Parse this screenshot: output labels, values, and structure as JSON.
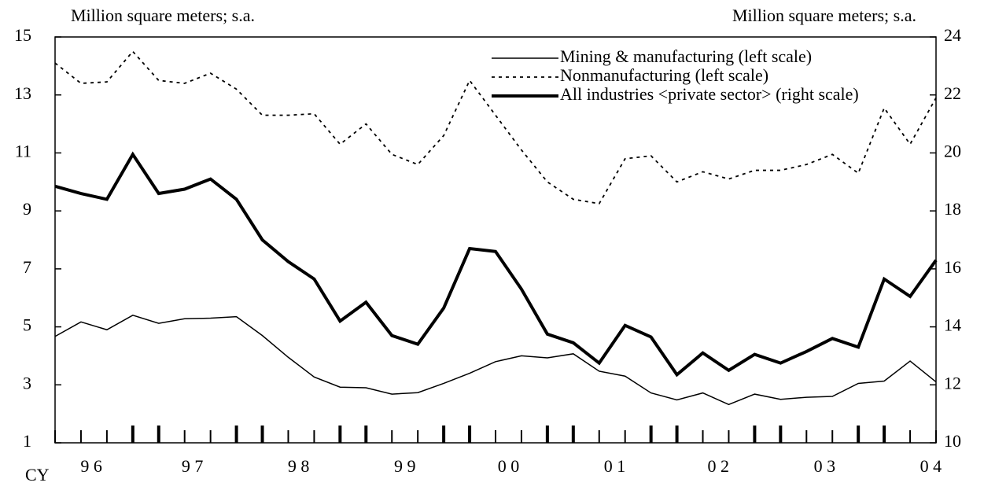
{
  "chart_data": {
    "type": "line",
    "y_label": "Million square meters; s.a.",
    "y2_label": "Million square meters; s.a.",
    "x_prefix": "CY",
    "categories": [
      null,
      null,
      null,
      null,
      null,
      null,
      null,
      null,
      null,
      null,
      null,
      null,
      null,
      null,
      null,
      null,
      null,
      null,
      null,
      null,
      null,
      null,
      null,
      null,
      null,
      null,
      null,
      null,
      null,
      null,
      null,
      null,
      null,
      null,
      null
    ],
    "xlim": [
      0,
      34
    ],
    "xticks": [
      {
        "value": 1.4,
        "label": "9 6"
      },
      {
        "value": 5.3,
        "label": "9 7"
      },
      {
        "value": 9.4,
        "label": "9 8"
      },
      {
        "value": 13.5,
        "label": "9 9"
      },
      {
        "value": 17.5,
        "label": "0 0"
      },
      {
        "value": 21.6,
        "label": "0 1"
      },
      {
        "value": 25.6,
        "label": "0 2"
      },
      {
        "value": 29.7,
        "label": "0 3"
      },
      {
        "value": 33.8,
        "label": "0 4"
      }
    ],
    "ylim": [
      1,
      15
    ],
    "yticks": [
      1,
      3,
      5,
      7,
      9,
      11,
      13,
      15
    ],
    "y2lim": [
      10,
      24
    ],
    "y2ticks": [
      10,
      12,
      14,
      16,
      18,
      20,
      22,
      24
    ],
    "series": [
      {
        "name": "Mining & manufacturing (left scale)",
        "color": "#000000",
        "style": "thin",
        "values": [
          4.67,
          5.17,
          4.9,
          5.4,
          5.12,
          5.28,
          5.3,
          5.35,
          4.7,
          3.95,
          3.27,
          2.92,
          2.9,
          2.68,
          2.73,
          3.05,
          3.4,
          3.8,
          4.0,
          3.93,
          4.07,
          3.47,
          3.3,
          2.72,
          2.48,
          2.72,
          2.32,
          2.68,
          2.5,
          2.57,
          2.6,
          3.05,
          3.13,
          3.82,
          3.1
        ]
      },
      {
        "name": "Nonmanufacturing (left scale)",
        "color": "#000000",
        "style": "dotted",
        "values": [
          14.1,
          13.4,
          13.45,
          14.5,
          13.5,
          13.4,
          13.75,
          13.2,
          12.3,
          12.3,
          12.35,
          11.3,
          12.0,
          10.95,
          10.6,
          11.6,
          13.5,
          12.3,
          11.1,
          10.0,
          9.4,
          9.25,
          10.8,
          10.9,
          10.0,
          10.35,
          10.1,
          10.4,
          10.4,
          10.6,
          10.95,
          10.3,
          12.55,
          11.3,
          12.9
        ]
      },
      {
        "name": "All industries <private sector> (right scale)",
        "color": "#000000",
        "style": "thick",
        "axis": "y2",
        "values": [
          18.85,
          18.6,
          18.4,
          19.95,
          18.6,
          18.75,
          19.1,
          18.4,
          17.0,
          16.25,
          15.65,
          14.2,
          14.85,
          13.7,
          13.4,
          14.65,
          16.7,
          16.6,
          15.3,
          13.75,
          13.45,
          12.75,
          14.05,
          13.65,
          12.35,
          13.1,
          12.5,
          13.05,
          12.75,
          13.15,
          13.6,
          13.3,
          15.65,
          15.05,
          16.3
        ]
      }
    ]
  }
}
